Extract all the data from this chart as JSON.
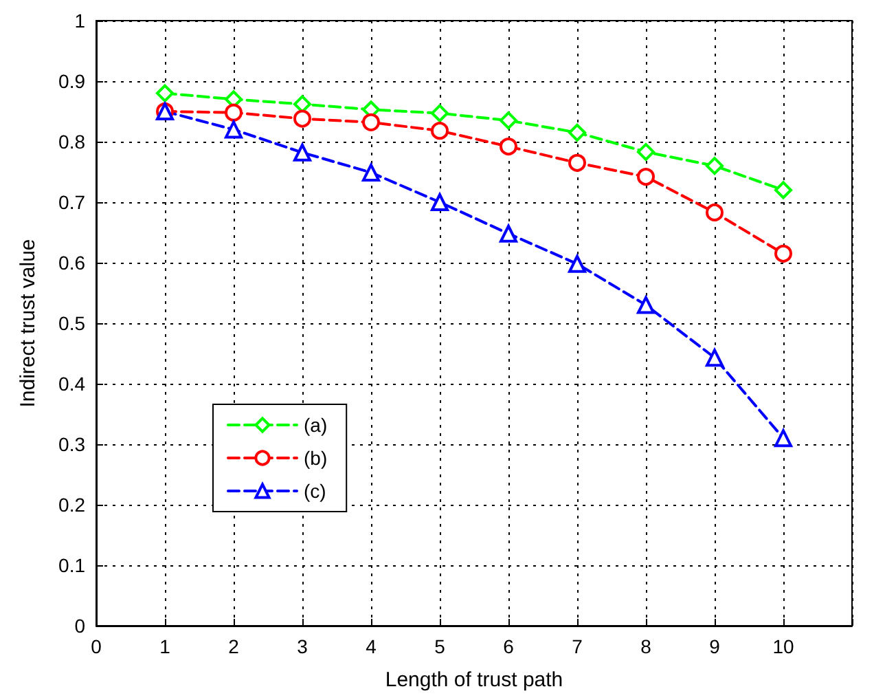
{
  "chart_data": {
    "type": "line",
    "xlabel": "Length of trust path",
    "ylabel": "Indirect trust value",
    "x": [
      1,
      2,
      3,
      4,
      5,
      6,
      7,
      8,
      9,
      10
    ],
    "series": [
      {
        "name": "(a)",
        "color": "#00ff00",
        "marker": "diamond",
        "values": [
          0.88,
          0.87,
          0.862,
          0.853,
          0.847,
          0.835,
          0.815,
          0.783,
          0.76,
          0.72
        ]
      },
      {
        "name": "(b)",
        "color": "#ff0000",
        "marker": "circle",
        "values": [
          0.85,
          0.848,
          0.838,
          0.832,
          0.818,
          0.792,
          0.765,
          0.742,
          0.683,
          0.615
        ]
      },
      {
        "name": "(c)",
        "color": "#0000ff",
        "marker": "triangle",
        "values": [
          0.85,
          0.82,
          0.782,
          0.749,
          0.7,
          0.648,
          0.598,
          0.53,
          0.443,
          0.31
        ]
      }
    ],
    "xlim": [
      0,
      11
    ],
    "xticks": [
      0,
      1,
      2,
      3,
      4,
      5,
      6,
      7,
      8,
      9,
      10,
      {
        "value": 11,
        "label": null
      }
    ],
    "ylim": [
      0,
      1
    ],
    "yticks": [
      0,
      0.1,
      0.2,
      0.3,
      0.4,
      0.5,
      0.6,
      0.7,
      0.8,
      0.9,
      1
    ],
    "grid": true,
    "legend": "bottom left",
    "line_style": "dashed"
  }
}
